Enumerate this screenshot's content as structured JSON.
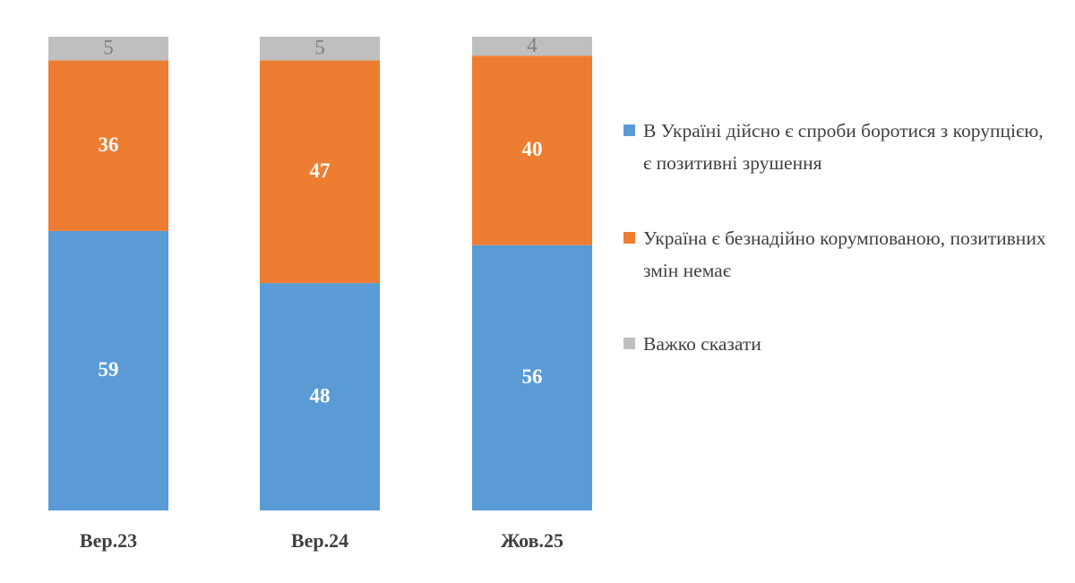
{
  "chart_data": {
    "type": "stacked_bar",
    "categories": [
      "Вер.23",
      "Вер.24",
      "Жов.25"
    ],
    "series": [
      {
        "name": "В Україні дійсно є спроби боротися з корупцією, є позитивні зрушення",
        "color": "#5b9bd5",
        "values": [
          59,
          48,
          56
        ]
      },
      {
        "name": "Україна є безнадійно корумпованою, позитивних змін немає",
        "color": "#ed7d31",
        "values": [
          36,
          47,
          40
        ]
      },
      {
        "name": "Важко сказати",
        "color": "#bfbfbf",
        "values": [
          5,
          5,
          4
        ]
      }
    ],
    "legend": "right"
  }
}
